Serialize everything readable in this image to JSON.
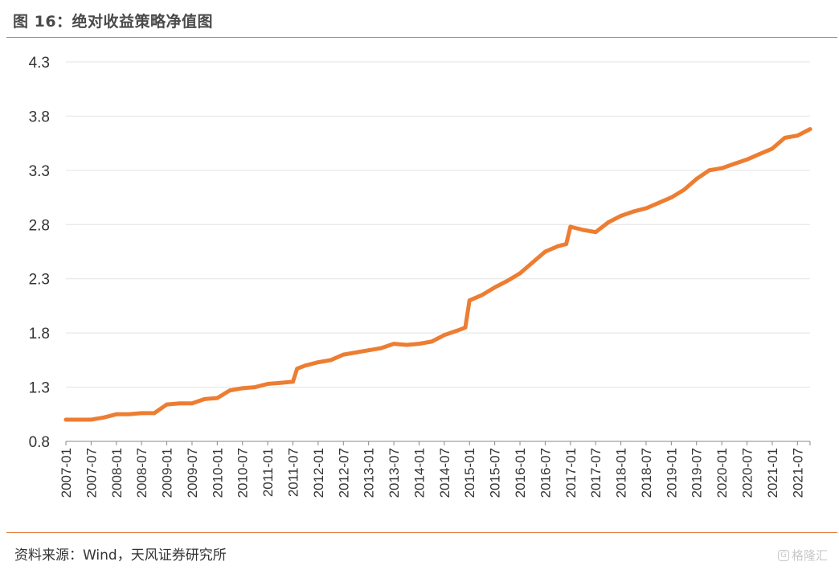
{
  "figure": {
    "title": "图 16：绝对收益策略净值图",
    "source": "资料来源：Wind，天风证券研究所"
  },
  "watermark": {
    "text": "格隆汇",
    "icon": "gelonghui-logo-icon"
  },
  "colors": {
    "line": "#ed7d31",
    "rule": "#e07b39",
    "grid": "#e3e3e3",
    "axis": "#888888",
    "text": "#333333"
  },
  "chart_data": {
    "type": "line",
    "title": "",
    "xlabel": "",
    "ylabel": "",
    "ylim": [
      0.8,
      4.3
    ],
    "yticks": [
      "0.8",
      "1.3",
      "1.8",
      "2.3",
      "2.8",
      "3.3",
      "3.8",
      "4.3"
    ],
    "ytick_values": [
      0.8,
      1.3,
      1.8,
      2.3,
      2.8,
      3.3,
      3.8,
      4.3
    ],
    "xticks": [
      "2007-01",
      "2007-07",
      "2008-01",
      "2008-07",
      "2009-01",
      "2009-07",
      "2010-01",
      "2010-07",
      "2011-01",
      "2011-07",
      "2012-01",
      "2012-07",
      "2013-01",
      "2013-07",
      "2014-01",
      "2014-07",
      "2015-01",
      "2015-07",
      "2016-01",
      "2016-07",
      "2017-01",
      "2017-07",
      "2018-01",
      "2018-07",
      "2019-01",
      "2019-07",
      "2020-01",
      "2020-07",
      "2021-01",
      "2021-07"
    ],
    "grid": "horizontal",
    "legend": "none",
    "series": [
      {
        "name": "",
        "x": [
          "2007-01",
          "2007-04",
          "2007-07",
          "2007-10",
          "2008-01",
          "2008-04",
          "2008-07",
          "2008-10",
          "2009-01",
          "2009-04",
          "2009-07",
          "2009-10",
          "2010-01",
          "2010-04",
          "2010-07",
          "2010-10",
          "2011-01",
          "2011-04",
          "2011-07",
          "2011-08",
          "2011-10",
          "2012-01",
          "2012-04",
          "2012-07",
          "2012-10",
          "2013-01",
          "2013-04",
          "2013-07",
          "2013-10",
          "2014-01",
          "2014-04",
          "2014-07",
          "2014-10",
          "2014-12",
          "2015-01",
          "2015-04",
          "2015-07",
          "2015-10",
          "2016-01",
          "2016-04",
          "2016-07",
          "2016-10",
          "2016-12",
          "2017-01",
          "2017-04",
          "2017-07",
          "2017-10",
          "2018-01",
          "2018-04",
          "2018-07",
          "2018-10",
          "2019-01",
          "2019-04",
          "2019-07",
          "2019-10",
          "2020-01",
          "2020-04",
          "2020-07",
          "2020-10",
          "2021-01",
          "2021-04",
          "2021-07",
          "2021-10"
        ],
        "y": [
          1.0,
          1.0,
          1.0,
          1.02,
          1.05,
          1.05,
          1.06,
          1.06,
          1.14,
          1.15,
          1.15,
          1.19,
          1.2,
          1.27,
          1.29,
          1.3,
          1.33,
          1.34,
          1.35,
          1.47,
          1.5,
          1.53,
          1.55,
          1.6,
          1.62,
          1.64,
          1.66,
          1.7,
          1.69,
          1.7,
          1.72,
          1.78,
          1.82,
          1.85,
          2.1,
          2.15,
          2.22,
          2.28,
          2.35,
          2.45,
          2.55,
          2.6,
          2.62,
          2.78,
          2.75,
          2.73,
          2.82,
          2.88,
          2.92,
          2.95,
          3.0,
          3.05,
          3.12,
          3.22,
          3.3,
          3.32,
          3.36,
          3.4,
          3.45,
          3.5,
          3.6,
          3.62,
          3.68
        ]
      }
    ]
  }
}
